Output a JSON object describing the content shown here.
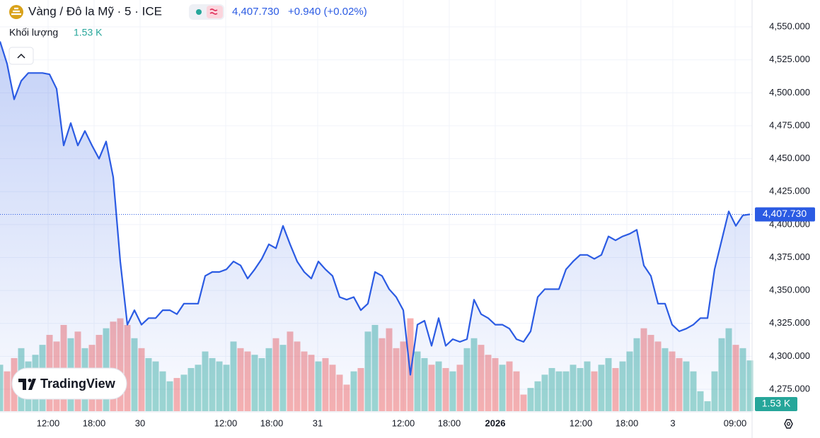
{
  "header": {
    "title": "Vàng / Đô la Mỹ · 5 · ICE",
    "price": "4,407.730",
    "change": "+0.940 (+0.02%)",
    "branding": "TradingView"
  },
  "chart_data": {
    "type": "line",
    "series": [
      {
        "name": "Vàng / Đô la Mỹ",
        "color": "#2b5be3",
        "values": [
          4539,
          4522,
          4495,
          4509,
          4515,
          4515,
          4515,
          4514,
          4503,
          4460,
          4477,
          4460,
          4471,
          4460,
          4450,
          4463,
          4436,
          4372,
          4324,
          4335,
          4324,
          4329,
          4329,
          4335,
          4335,
          4332,
          4340,
          4340,
          4340,
          4361,
          4364,
          4364,
          4366,
          4372,
          4369,
          4359,
          4366,
          4374,
          4385,
          4382,
          4399,
          4385,
          4372,
          4364,
          4359,
          4372,
          4366,
          4361,
          4345,
          4343,
          4345,
          4335,
          4340,
          4364,
          4361,
          4351,
          4345,
          4335,
          4286,
          4324,
          4327,
          4308,
          4329,
          4308,
          4313,
          4311,
          4313,
          4343,
          4332,
          4329,
          4324,
          4324,
          4321,
          4313,
          4311,
          4319,
          4345,
          4351,
          4351,
          4351,
          4366,
          4372,
          4377,
          4377,
          4374,
          4377,
          4391,
          4388,
          4391,
          4393,
          4396,
          4369,
          4361,
          4340,
          4340,
          4324,
          4319,
          4321,
          4324,
          4329,
          4329,
          4366,
          4388,
          4410,
          4399,
          4407,
          4407.73
        ],
        "last_label": "4,407.730"
      }
    ],
    "volume": {
      "name": "Khối lượng",
      "up_color": "#26a69a",
      "down_color": "#ef5350",
      "ylim": [
        0,
        12.4
      ],
      "last_label": "1.53 K",
      "values": [
        1.4,
        1.2,
        1.6,
        1.9,
        1.5,
        1.7,
        2.0,
        2.3,
        2.1,
        2.6,
        2.2,
        2.4,
        1.9,
        2.0,
        2.3,
        2.5,
        2.7,
        2.8,
        2.6,
        2.2,
        1.9,
        1.6,
        1.5,
        1.2,
        0.9,
        1.0,
        1.1,
        1.3,
        1.4,
        1.8,
        1.6,
        1.5,
        1.4,
        2.1,
        1.9,
        1.8,
        1.7,
        1.6,
        1.9,
        2.2,
        2.0,
        2.4,
        2.1,
        1.8,
        1.7,
        1.5,
        1.6,
        1.4,
        1.1,
        0.8,
        1.2,
        1.3,
        2.4,
        2.6,
        2.2,
        2.5,
        1.9,
        2.1,
        2.8,
        1.8,
        1.6,
        1.4,
        1.5,
        1.3,
        1.2,
        1.4,
        1.9,
        2.2,
        2.0,
        1.7,
        1.6,
        1.4,
        1.5,
        1.2,
        0.5,
        0.7,
        0.9,
        1.1,
        1.3,
        1.2,
        1.2,
        1.4,
        1.3,
        1.5,
        1.2,
        1.4,
        1.6,
        1.3,
        1.5,
        1.8,
        2.2,
        2.5,
        2.3,
        2.1,
        1.9,
        1.8,
        1.6,
        1.5,
        1.2,
        0.6,
        0.3,
        1.2,
        2.2,
        2.5,
        2.0,
        1.9,
        1.53
      ]
    },
    "xlim": [
      0,
      106
    ],
    "xticks": [
      {
        "value": 6.8,
        "label": "12:00"
      },
      {
        "value": 13.3,
        "label": "18:00"
      },
      {
        "value": 19.8,
        "label": "30"
      },
      {
        "value": 31.9,
        "label": "12:00"
      },
      {
        "value": 38.4,
        "label": "18:00"
      },
      {
        "value": 44.9,
        "label": "31"
      },
      {
        "value": 57,
        "label": "12:00"
      },
      {
        "value": 63.5,
        "label": "18:00"
      },
      {
        "value": 70,
        "label": "2026"
      },
      {
        "value": 82.1,
        "label": "12:00"
      },
      {
        "value": 88.6,
        "label": "18:00"
      },
      {
        "value": 95.1,
        "label": "3"
      },
      {
        "value": 103.9,
        "label": "09:00"
      }
    ],
    "ylim": [
      4258.4,
      4570.4
    ],
    "yticks": [
      {
        "value": 4275,
        "label": "4,275.000"
      },
      {
        "value": 4300,
        "label": "4,300.000"
      },
      {
        "value": 4325,
        "label": "4,325.000"
      },
      {
        "value": 4350,
        "label": "4,350.000"
      },
      {
        "value": 4375,
        "label": "4,375.000"
      },
      {
        "value": 4400,
        "label": "4,400.000"
      },
      {
        "value": 4425,
        "label": "4,425.000"
      },
      {
        "value": 4450,
        "label": "4,450.000"
      },
      {
        "value": 4475,
        "label": "4,475.000"
      },
      {
        "value": 4500,
        "label": "4,500.000"
      },
      {
        "value": 4525,
        "label": "4,525.000"
      },
      {
        "value": 4550,
        "label": "4,550.000"
      }
    ],
    "grid": true
  }
}
